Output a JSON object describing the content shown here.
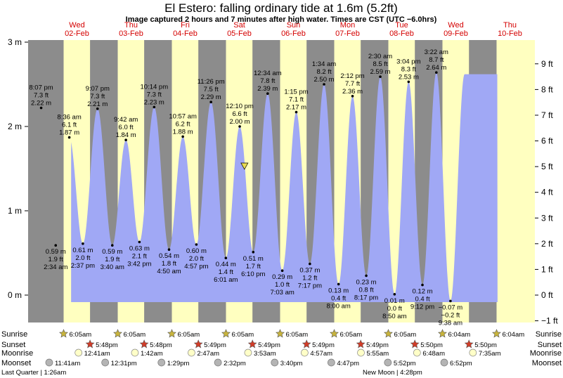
{
  "title": "El Estero: falling  ordinary tide at 1.6m (5.2ft)",
  "subtitle": "Image captured 2 hours and 7 minutes after high water. Times are CST (UTC −6.0hrs)",
  "days": [
    {
      "dow": "Wed",
      "date": "02-Feb"
    },
    {
      "dow": "Thu",
      "date": "03-Feb"
    },
    {
      "dow": "Fri",
      "date": "04-Feb"
    },
    {
      "dow": "Sat",
      "date": "05-Feb"
    },
    {
      "dow": "Sun",
      "date": "06-Feb"
    },
    {
      "dow": "Mon",
      "date": "07-Feb"
    },
    {
      "dow": "Tue",
      "date": "08-Feb"
    },
    {
      "dow": "Wed",
      "date": "09-Feb"
    },
    {
      "dow": "Thu",
      "date": "10-Feb"
    }
  ],
  "colors": {
    "night": "#8c8c8c",
    "day": "#ffffc0",
    "water": "#a0a8f5",
    "day_header": "#d40000",
    "sunrise_star": "#c8b43c",
    "sunset_star": "#d23c28",
    "moonrise": "#ffffc8",
    "moonset": "#b4b4b4"
  },
  "chart_data": {
    "type": "area",
    "title": "El Estero: falling  ordinary tide at 1.6m (5.2ft)",
    "subtitle": "Image captured 2 hours and 7 minutes after high water. Times are CST (UTC −6.0hrs)",
    "x_unit": "hours since 02-Feb 00:00 CST",
    "xlim": [
      -12.2,
      218
    ],
    "left_axis": {
      "unit": "m",
      "ylim": [
        -0.28,
        3.0
      ],
      "ticks": [
        0,
        1,
        2,
        3
      ],
      "tick_labels": [
        "0 m",
        "1 m",
        "2 m",
        "3 m"
      ]
    },
    "right_axis": {
      "unit": "ft",
      "ticks": [
        -1,
        0,
        1,
        2,
        3,
        4,
        5,
        6,
        7,
        8,
        9
      ],
      "tick_labels": [
        "−1 ft",
        "0 ft",
        "1 ft",
        "2 ft",
        "3 ft",
        "4 ft",
        "5 ft",
        "6 ft",
        "7 ft",
        "8 ft",
        "9 ft"
      ]
    },
    "sun_events": [
      {
        "type": "sunrise",
        "day": 0,
        "hour": 6.08
      },
      {
        "type": "sunset",
        "day": 0,
        "hour": 17.8
      },
      {
        "type": "sunrise",
        "day": 1,
        "hour": 6.08
      },
      {
        "type": "sunset",
        "day": 1,
        "hour": 17.8
      },
      {
        "type": "sunrise",
        "day": 2,
        "hour": 6.08
      },
      {
        "type": "sunset",
        "day": 2,
        "hour": 17.82
      },
      {
        "type": "sunrise",
        "day": 3,
        "hour": 6.08
      },
      {
        "type": "sunset",
        "day": 3,
        "hour": 17.82
      },
      {
        "type": "sunrise",
        "day": 4,
        "hour": 6.08
      },
      {
        "type": "sunset",
        "day": 4,
        "hour": 17.82
      },
      {
        "type": "sunrise",
        "day": 5,
        "hour": 6.08
      },
      {
        "type": "sunset",
        "day": 5,
        "hour": 17.82
      },
      {
        "type": "sunrise",
        "day": 6,
        "hour": 6.08
      },
      {
        "type": "sunset",
        "day": 6,
        "hour": 17.83
      },
      {
        "type": "sunrise",
        "day": 7,
        "hour": 6.07
      },
      {
        "type": "sunset",
        "day": 7,
        "hour": 17.83
      },
      {
        "type": "sunrise",
        "day": 8,
        "hour": 6.07
      }
    ],
    "tides": [
      {
        "kind": "low",
        "day": 0,
        "hour": -9.5,
        "m": 0.66,
        "show": false
      },
      {
        "kind": "high",
        "day": 0,
        "hour": -3.88,
        "m": 2.22,
        "ft": "7.3 ft",
        "time": "8:07 pm",
        "mt": "2.22 m",
        "show": true
      },
      {
        "kind": "low",
        "day": 0,
        "hour": 2.57,
        "m": 0.59,
        "ft": "1.9 ft",
        "time": "2:34 am",
        "mt": "0.59 m",
        "show": true
      },
      {
        "kind": "high",
        "day": 0,
        "hour": 8.6,
        "m": 1.87,
        "ft": "6.1 ft",
        "time": "8:36 am",
        "mt": "1.87 m",
        "show": true
      },
      {
        "kind": "low",
        "day": 0,
        "hour": 14.62,
        "m": 0.61,
        "ft": "2.0 ft",
        "time": "2:37 pm",
        "mt": "0.61 m",
        "show": true
      },
      {
        "kind": "high",
        "day": 0,
        "hour": 21.12,
        "m": 2.21,
        "ft": "7.3 ft",
        "time": "9:07 pm",
        "mt": "2.21 m",
        "show": true
      },
      {
        "kind": "low",
        "day": 1,
        "hour": 3.67,
        "m": 0.59,
        "ft": "1.9 ft",
        "time": "3:40 am",
        "mt": "0.59 m",
        "show": true
      },
      {
        "kind": "high",
        "day": 1,
        "hour": 9.7,
        "m": 1.84,
        "ft": "6.0 ft",
        "time": "9:42 am",
        "mt": "1.84 m",
        "show": true
      },
      {
        "kind": "low",
        "day": 1,
        "hour": 15.7,
        "m": 0.63,
        "ft": "2.1 ft",
        "time": "3:42 pm",
        "mt": "0.63 m",
        "show": true
      },
      {
        "kind": "high",
        "day": 1,
        "hour": 22.23,
        "m": 2.23,
        "ft": "7.3 ft",
        "time": "10:14 pm",
        "mt": "2.23 m",
        "show": true
      },
      {
        "kind": "low",
        "day": 2,
        "hour": 4.83,
        "m": 0.54,
        "ft": "1.8 ft",
        "time": "4:50 am",
        "mt": "0.54 m",
        "show": true
      },
      {
        "kind": "high",
        "day": 2,
        "hour": 10.95,
        "m": 1.88,
        "ft": "6.2 ft",
        "time": "10:57 am",
        "mt": "1.88 m",
        "show": true
      },
      {
        "kind": "low",
        "day": 2,
        "hour": 16.95,
        "m": 0.6,
        "ft": "2.0 ft",
        "time": "4:57 pm",
        "mt": "0.60 m",
        "show": true
      },
      {
        "kind": "high",
        "day": 2,
        "hour": 23.43,
        "m": 2.29,
        "ft": "7.5 ft",
        "time": "11:26 pm",
        "mt": "2.29 m",
        "show": true
      },
      {
        "kind": "low",
        "day": 3,
        "hour": 6.02,
        "m": 0.44,
        "ft": "1.4 ft",
        "time": "6:01 am",
        "mt": "0.44 m",
        "show": true
      },
      {
        "kind": "high",
        "day": 3,
        "hour": 12.17,
        "m": 2.0,
        "ft": "6.6 ft",
        "time": "12:10 pm",
        "mt": "2.00 m",
        "show": true
      },
      {
        "kind": "low",
        "day": 3,
        "hour": 18.17,
        "m": 0.51,
        "ft": "1.7 ft",
        "time": "6:10 pm",
        "mt": "0.51 m",
        "show": true
      },
      {
        "kind": "high",
        "day": 4,
        "hour": 0.57,
        "m": 2.39,
        "ft": "7.8 ft",
        "time": "12:34 am",
        "mt": "2.39 m",
        "show": true
      },
      {
        "kind": "low",
        "day": 4,
        "hour": 7.05,
        "m": 0.29,
        "ft": "1.0 ft",
        "time": "7:03 am",
        "mt": "0.29 m",
        "show": true
      },
      {
        "kind": "high",
        "day": 4,
        "hour": 13.25,
        "m": 2.17,
        "ft": "7.1 ft",
        "time": "1:15 pm",
        "mt": "2.17 m",
        "show": true
      },
      {
        "kind": "low",
        "day": 4,
        "hour": 19.28,
        "m": 0.37,
        "ft": "1.2 ft",
        "time": "7:17 pm",
        "mt": "0.37 m",
        "show": true
      },
      {
        "kind": "high",
        "day": 5,
        "hour": 1.57,
        "m": 2.5,
        "ft": "8.2 ft",
        "time": "1:34 am",
        "mt": "2.50 m",
        "show": true
      },
      {
        "kind": "low",
        "day": 5,
        "hour": 8.0,
        "m": 0.13,
        "ft": "0.4 ft",
        "time": "8:00 am",
        "mt": "0.13 m",
        "show": true
      },
      {
        "kind": "high",
        "day": 5,
        "hour": 14.2,
        "m": 2.36,
        "ft": "7.7 ft",
        "time": "2:12 pm",
        "mt": "2.36 m",
        "show": true
      },
      {
        "kind": "low",
        "day": 5,
        "hour": 20.28,
        "m": 0.23,
        "ft": "0.8 ft",
        "time": "8:17 pm",
        "mt": "0.23 m",
        "show": true
      },
      {
        "kind": "high",
        "day": 6,
        "hour": 2.5,
        "m": 2.59,
        "ft": "8.5 ft",
        "time": "2:30 am",
        "mt": "2.59 m",
        "show": true
      },
      {
        "kind": "low",
        "day": 6,
        "hour": 8.83,
        "m": 0.01,
        "ft": "0.0 ft",
        "time": "8:50 am",
        "mt": "0.01 m",
        "show": true
      },
      {
        "kind": "high",
        "day": 6,
        "hour": 15.07,
        "m": 2.53,
        "ft": "8.3 ft",
        "time": "3:04 pm",
        "mt": "2.53 m",
        "show": true
      },
      {
        "kind": "low",
        "day": 6,
        "hour": 21.2,
        "m": 0.12,
        "ft": "0.4 ft",
        "time": "9:12 pm",
        "mt": "0.12 m",
        "show": true
      },
      {
        "kind": "high",
        "day": 7,
        "hour": 3.37,
        "m": 2.64,
        "ft": "8.7 ft",
        "time": "3:22 am",
        "mt": "2.64 m",
        "show": true
      },
      {
        "kind": "low",
        "day": 7,
        "hour": 9.63,
        "m": -0.07,
        "ft": "−0.2 ft",
        "time": "9:38 am",
        "mt": "−0.07 m",
        "show": true
      },
      {
        "kind": "high",
        "day": 7,
        "hour": 15.9,
        "m": 2.62,
        "show": false
      }
    ],
    "current": {
      "day": 3,
      "hour": 14.28,
      "m": 1.6
    }
  },
  "events": {
    "labels": {
      "sunrise": "Sunrise",
      "sunset": "Sunset",
      "moonrise": "Moonrise",
      "moonset": "Moonset"
    },
    "sunrise": [
      {
        "day": 0,
        "hour": 6.08,
        "time": "6:05am"
      },
      {
        "day": 1,
        "hour": 6.08,
        "time": "6:05am"
      },
      {
        "day": 2,
        "hour": 6.08,
        "time": "6:05am"
      },
      {
        "day": 3,
        "hour": 6.08,
        "time": "6:05am"
      },
      {
        "day": 4,
        "hour": 6.08,
        "time": "6:05am"
      },
      {
        "day": 5,
        "hour": 6.08,
        "time": "6:05am"
      },
      {
        "day": 6,
        "hour": 6.08,
        "time": "6:05am"
      },
      {
        "day": 7,
        "hour": 6.07,
        "time": "6:04am"
      },
      {
        "day": 8,
        "hour": 6.07,
        "time": "6:04am"
      }
    ],
    "sunset": [
      {
        "day": 0,
        "hour": 17.8,
        "time": "5:48pm"
      },
      {
        "day": 1,
        "hour": 17.8,
        "time": "5:48pm"
      },
      {
        "day": 2,
        "hour": 17.82,
        "time": "5:49pm"
      },
      {
        "day": 3,
        "hour": 17.82,
        "time": "5:49pm"
      },
      {
        "day": 4,
        "hour": 17.82,
        "time": "5:49pm"
      },
      {
        "day": 5,
        "hour": 17.82,
        "time": "5:49pm"
      },
      {
        "day": 6,
        "hour": 17.83,
        "time": "5:50pm"
      },
      {
        "day": 7,
        "hour": 17.83,
        "time": "5:50pm"
      }
    ],
    "moonrise": [
      {
        "day": 0,
        "hour": 12.68,
        "time": "12:41am"
      },
      {
        "day": 1,
        "hour": 13.7,
        "time": "1:42am"
      },
      {
        "day": 2,
        "hour": 14.78,
        "time": "2:47am"
      },
      {
        "day": 3,
        "hour": 15.88,
        "time": "3:53am"
      },
      {
        "day": 4,
        "hour": 16.95,
        "time": "4:57am"
      },
      {
        "day": 5,
        "hour": 17.92,
        "time": "5:55am"
      },
      {
        "day": 6,
        "hour": 18.8,
        "time": "6:48am"
      },
      {
        "day": 7,
        "hour": 19.58,
        "time": "7:35am"
      }
    ],
    "moonset": [
      {
        "day": 0,
        "hour": -0.32,
        "time": "11:41am"
      },
      {
        "day": 1,
        "hour": 0.52,
        "time": "12:31pm"
      },
      {
        "day": 2,
        "hour": 1.48,
        "time": "1:29pm"
      },
      {
        "day": 3,
        "hour": 2.53,
        "time": "2:32pm"
      },
      {
        "day": 4,
        "hour": 3.67,
        "time": "3:40pm"
      },
      {
        "day": 5,
        "hour": 4.78,
        "time": "4:47pm"
      },
      {
        "day": 6,
        "hour": 5.87,
        "time": "5:52pm"
      },
      {
        "day": 7,
        "hour": 6.87,
        "time": "6:52pm"
      }
    ]
  },
  "moon_phases": [
    {
      "label": "Last Quarter | 1:26am"
    },
    {
      "label": "New Moon | 4:28pm"
    }
  ]
}
